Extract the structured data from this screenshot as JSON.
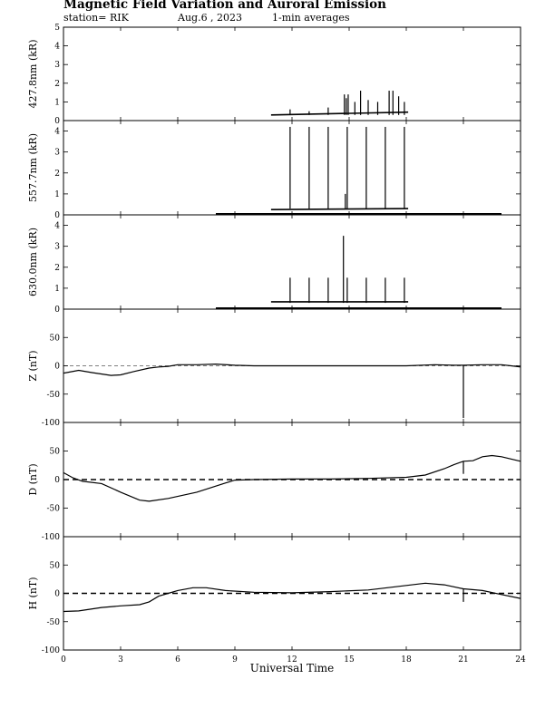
{
  "header": {
    "title": "Magnetic Field Variation and Auroral Emission",
    "station": "station= RIK",
    "date": "Aug.6  , 2023",
    "averaging": "1-min averages"
  },
  "chart_data": {
    "type": "line",
    "xlabel": "Universal Time",
    "xlim": [
      0,
      24
    ],
    "xticks": [
      0,
      3,
      6,
      9,
      12,
      15,
      18,
      21,
      24
    ],
    "panels": [
      {
        "id": "427",
        "ylabel": "427.8nm (kR)",
        "ylim": [
          0,
          5
        ],
        "yticks": [
          0,
          1,
          2,
          3,
          4,
          5
        ],
        "series": [
          {
            "kind": "segment",
            "x": [
              10.9,
              18.1
            ],
            "y": [
              0.3,
              0.45
            ]
          }
        ],
        "spikes": [
          [
            11.9,
            0.6
          ],
          [
            12.9,
            0.5
          ],
          [
            13.9,
            0.7
          ],
          [
            14.75,
            1.4
          ],
          [
            14.85,
            1.2
          ],
          [
            14.95,
            1.4
          ],
          [
            15.3,
            1.0
          ],
          [
            15.6,
            1.6
          ],
          [
            16.0,
            1.1
          ],
          [
            16.5,
            1.0
          ],
          [
            17.1,
            1.6
          ],
          [
            17.3,
            1.6
          ],
          [
            17.6,
            1.3
          ],
          [
            17.9,
            1.0
          ]
        ]
      },
      {
        "id": "557",
        "ylabel": "557.7nm (kR)",
        "ylim": [
          0,
          4.5
        ],
        "yticks": [
          0,
          1,
          2,
          3,
          4
        ],
        "series": [
          {
            "kind": "segment",
            "x": [
              8.0,
              23.0
            ],
            "y": [
              0.05,
              0.05
            ]
          },
          {
            "kind": "segment",
            "x": [
              10.9,
              18.1
            ],
            "y": [
              0.25,
              0.3
            ]
          }
        ],
        "spikes": [
          [
            11.9,
            4.2
          ],
          [
            12.9,
            4.2
          ],
          [
            13.9,
            4.2
          ],
          [
            14.9,
            4.2
          ],
          [
            15.9,
            4.2
          ],
          [
            16.9,
            4.2
          ],
          [
            17.9,
            4.2
          ],
          [
            14.8,
            1.0
          ]
        ]
      },
      {
        "id": "630",
        "ylabel": "630.0nm (kR)",
        "ylim": [
          0,
          4.5
        ],
        "yticks": [
          0,
          1,
          2,
          3,
          4
        ],
        "series": [
          {
            "kind": "segment",
            "x": [
              8.0,
              23.0
            ],
            "y": [
              0.05,
              0.05
            ]
          },
          {
            "kind": "segment",
            "x": [
              10.9,
              18.1
            ],
            "y": [
              0.35,
              0.35
            ]
          }
        ],
        "spikes": [
          [
            11.9,
            1.5
          ],
          [
            12.9,
            1.5
          ],
          [
            13.9,
            1.5
          ],
          [
            14.7,
            3.5
          ],
          [
            14.9,
            1.5
          ],
          [
            15.9,
            1.5
          ],
          [
            16.9,
            1.5
          ],
          [
            17.9,
            1.5
          ]
        ]
      },
      {
        "id": "Z",
        "ylabel": "Z (nT)",
        "ylim": [
          -100,
          100
        ],
        "yticks": [
          -100,
          -50,
          0,
          50
        ],
        "zero_line": "dashed-thin",
        "series": [
          {
            "kind": "curve",
            "x": [
              0,
              0.8,
              1.5,
              2.5,
              3.0,
              3.7,
              4.5,
              5.0,
              5.5,
              6.0,
              7.0,
              8.0,
              9.0,
              10.0,
              12.0,
              14.0,
              16.0,
              18.0,
              19.5,
              20.5,
              21.0,
              22.0,
              23.0,
              23.5,
              24.0
            ],
            "y": [
              -13,
              -8,
              -12,
              -17,
              -16,
              -10,
              -4,
              -2,
              -1,
              2,
              2,
              3,
              1,
              0,
              0,
              0,
              0,
              0,
              2,
              1,
              1,
              2,
              2,
              0,
              -2
            ]
          }
        ],
        "spikes": [
          [
            21.0,
            -92
          ]
        ]
      },
      {
        "id": "D",
        "ylabel": "D (nT)",
        "ylim": [
          -100,
          100
        ],
        "yticks": [
          -100,
          -50,
          0,
          50
        ],
        "zero_line": "dashed-thick",
        "series": [
          {
            "kind": "curve",
            "x": [
              0,
              0.5,
              1.0,
              2.0,
              3.0,
              4.0,
              4.5,
              5.5,
              7.0,
              8.5,
              9.0,
              10.0,
              12.0,
              14.0,
              16.0,
              18.0,
              19.0,
              20.0,
              20.5,
              21.0,
              21.5,
              22.0,
              22.5,
              23.0,
              24.0
            ],
            "y": [
              12,
              3,
              -3,
              -7,
              -22,
              -36,
              -38,
              -33,
              -22,
              -6,
              -1,
              0,
              1,
              1,
              2,
              4,
              8,
              19,
              26,
              32,
              33,
              40,
              42,
              40,
              32
            ]
          }
        ],
        "spikes": [
          [
            21.0,
            10
          ]
        ]
      },
      {
        "id": "H",
        "ylabel": "H (nT)",
        "ylim": [
          -100,
          100
        ],
        "yticks": [
          -100,
          -50,
          0,
          50
        ],
        "zero_line": "dashed-thick",
        "series": [
          {
            "kind": "curve",
            "x": [
              0,
              0.8,
              2.0,
              3.0,
              4.0,
              4.5,
              5.0,
              5.5,
              6.0,
              6.8,
              7.5,
              8.5,
              10.0,
              12.0,
              14.0,
              16.0,
              17.0,
              18.0,
              19.0,
              20.0,
              21.0,
              22.0,
              23.0,
              24.0
            ],
            "y": [
              -32,
              -31,
              -25,
              -22,
              -20,
              -15,
              -5,
              0,
              5,
              10,
              10,
              5,
              2,
              1,
              3,
              6,
              10,
              14,
              18,
              15,
              8,
              5,
              -2,
              -9
            ]
          }
        ],
        "spikes": [
          [
            21.0,
            -15
          ]
        ]
      }
    ]
  }
}
